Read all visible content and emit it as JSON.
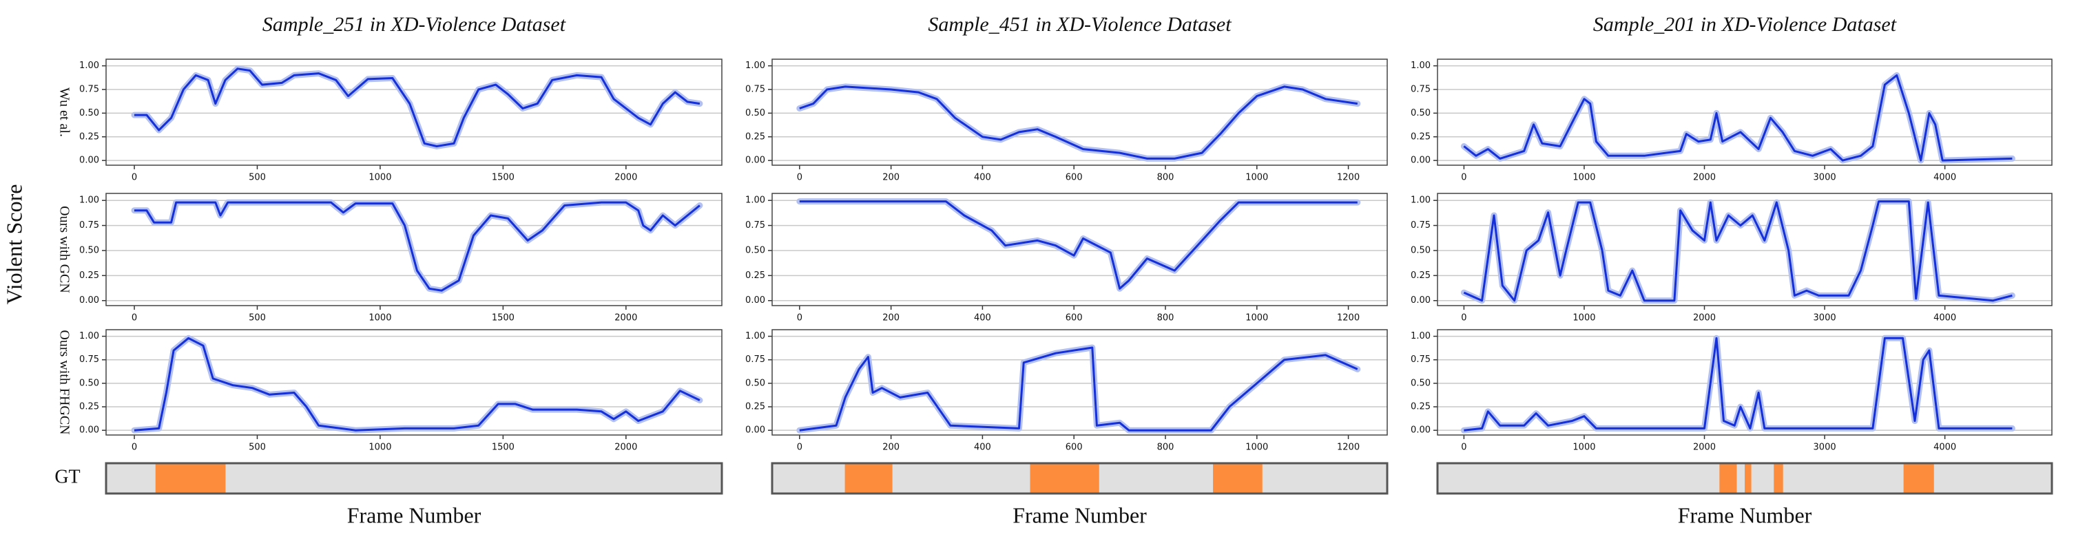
{
  "ylabel": "Violent Score",
  "chart_data": [
    {
      "type": "line",
      "title": "Sample_251 in XD-Violence Dataset",
      "ylabel": "Wu et al.",
      "color": "#1530d8",
      "grid": true,
      "x": [
        0,
        50,
        100,
        150,
        200,
        250,
        300,
        330,
        370,
        420,
        470,
        520,
        600,
        650,
        750,
        820,
        870,
        950,
        1050,
        1120,
        1180,
        1230,
        1300,
        1340,
        1400,
        1470,
        1520,
        1580,
        1640,
        1700,
        1800,
        1900,
        1950,
        2050,
        2100,
        2150,
        2200,
        2250,
        2300
      ],
      "values": [
        0.48,
        0.48,
        0.32,
        0.45,
        0.75,
        0.9,
        0.85,
        0.6,
        0.85,
        0.97,
        0.95,
        0.8,
        0.82,
        0.9,
        0.92,
        0.85,
        0.68,
        0.86,
        0.87,
        0.6,
        0.18,
        0.15,
        0.18,
        0.45,
        0.75,
        0.8,
        0.7,
        0.55,
        0.6,
        0.85,
        0.9,
        0.88,
        0.65,
        0.45,
        0.38,
        0.6,
        0.72,
        0.62,
        0.6
      ],
      "xlim": [
        -115,
        2390
      ],
      "ylim": [
        -0.05,
        1.07
      ],
      "xticks": [
        0,
        500,
        1000,
        1500,
        2000
      ],
      "yticks": [
        {
          "value": 0,
          "label": "0.00"
        },
        {
          "value": 0.25,
          "label": "0.25"
        },
        {
          "value": 0.5,
          "label": "0.50"
        },
        {
          "value": 0.75,
          "label": "0.75"
        },
        {
          "value": 1,
          "label": "1.00"
        }
      ]
    },
    {
      "type": "line",
      "title": "Sample_451 in XD-Violence Dataset",
      "color": "#1530d8",
      "grid": true,
      "x": [
        0,
        30,
        60,
        100,
        200,
        260,
        300,
        340,
        400,
        440,
        480,
        520,
        560,
        620,
        700,
        760,
        820,
        880,
        920,
        960,
        1000,
        1060,
        1100,
        1150,
        1220
      ],
      "values": [
        0.55,
        0.6,
        0.75,
        0.78,
        0.75,
        0.72,
        0.65,
        0.45,
        0.25,
        0.22,
        0.3,
        0.33,
        0.25,
        0.12,
        0.08,
        0.02,
        0.02,
        0.08,
        0.28,
        0.5,
        0.68,
        0.78,
        0.75,
        0.65,
        0.6
      ],
      "xlim": [
        -60,
        1285
      ],
      "ylim": [
        -0.05,
        1.07
      ],
      "xticks": [
        0,
        200,
        400,
        600,
        800,
        1000,
        1200
      ],
      "yticks": [
        {
          "value": 0,
          "label": "0.00"
        },
        {
          "value": 0.25,
          "label": "0.25"
        },
        {
          "value": 0.5,
          "label": "0.50"
        },
        {
          "value": 0.75,
          "label": "0.75"
        },
        {
          "value": 1,
          "label": "1.00"
        }
      ]
    },
    {
      "type": "line",
      "title": "Sample_201 in XD-Violence Dataset",
      "color": "#1530d8",
      "grid": true,
      "x": [
        0,
        100,
        200,
        300,
        500,
        580,
        650,
        800,
        900,
        1000,
        1050,
        1100,
        1200,
        1500,
        1800,
        1850,
        1950,
        2050,
        2100,
        2150,
        2300,
        2450,
        2550,
        2650,
        2750,
        2900,
        3050,
        3150,
        3300,
        3400,
        3500,
        3600,
        3700,
        3800,
        3870,
        3920,
        3980,
        4560
      ],
      "values": [
        0.15,
        0.05,
        0.12,
        0.02,
        0.1,
        0.38,
        0.18,
        0.15,
        0.4,
        0.65,
        0.6,
        0.2,
        0.05,
        0.05,
        0.1,
        0.28,
        0.2,
        0.22,
        0.5,
        0.2,
        0.3,
        0.12,
        0.45,
        0.3,
        0.1,
        0.05,
        0.12,
        0.0,
        0.05,
        0.15,
        0.8,
        0.9,
        0.5,
        0.0,
        0.5,
        0.38,
        0.0,
        0.02
      ],
      "xlim": [
        -220,
        4890
      ],
      "ylim": [
        -0.05,
        1.07
      ],
      "xticks": [
        0,
        1000,
        2000,
        3000,
        4000
      ],
      "yticks": [
        {
          "value": 0,
          "label": "0.00"
        },
        {
          "value": 0.25,
          "label": "0.25"
        },
        {
          "value": 0.5,
          "label": "0.50"
        },
        {
          "value": 0.75,
          "label": "0.75"
        },
        {
          "value": 1,
          "label": "1.00"
        }
      ]
    },
    {
      "type": "line",
      "ylabel": "Ours with GCN",
      "color": "#1530d8",
      "grid": true,
      "x": [
        0,
        50,
        80,
        150,
        170,
        330,
        350,
        380,
        800,
        850,
        900,
        1050,
        1100,
        1150,
        1200,
        1250,
        1320,
        1380,
        1450,
        1520,
        1600,
        1660,
        1750,
        1900,
        2000,
        2050,
        2070,
        2100,
        2150,
        2200,
        2300
      ],
      "values": [
        0.9,
        0.9,
        0.78,
        0.78,
        0.98,
        0.98,
        0.85,
        0.98,
        0.98,
        0.88,
        0.97,
        0.97,
        0.75,
        0.3,
        0.12,
        0.1,
        0.2,
        0.65,
        0.85,
        0.82,
        0.6,
        0.7,
        0.95,
        0.98,
        0.98,
        0.9,
        0.75,
        0.7,
        0.85,
        0.75,
        0.95
      ],
      "xlim": [
        -115,
        2390
      ],
      "ylim": [
        -0.05,
        1.07
      ],
      "xticks": [
        0,
        500,
        1000,
        1500,
        2000
      ],
      "yticks": [
        {
          "value": 0,
          "label": "0.00"
        },
        {
          "value": 0.25,
          "label": "0.25"
        },
        {
          "value": 0.5,
          "label": "0.50"
        },
        {
          "value": 0.75,
          "label": "0.75"
        },
        {
          "value": 1,
          "label": "1.00"
        }
      ]
    },
    {
      "type": "line",
      "color": "#1530d8",
      "grid": true,
      "x": [
        0,
        200,
        320,
        360,
        420,
        450,
        520,
        560,
        600,
        620,
        680,
        700,
        720,
        760,
        820,
        870,
        920,
        960,
        1220
      ],
      "values": [
        0.99,
        0.99,
        0.99,
        0.85,
        0.7,
        0.55,
        0.6,
        0.55,
        0.45,
        0.62,
        0.48,
        0.12,
        0.2,
        0.42,
        0.3,
        0.55,
        0.8,
        0.98,
        0.98
      ],
      "xlim": [
        -60,
        1285
      ],
      "ylim": [
        -0.05,
        1.07
      ],
      "xticks": [
        0,
        200,
        400,
        600,
        800,
        1000,
        1200
      ],
      "yticks": [
        {
          "value": 0,
          "label": "0.00"
        },
        {
          "value": 0.25,
          "label": "0.25"
        },
        {
          "value": 0.5,
          "label": "0.50"
        },
        {
          "value": 0.75,
          "label": "0.75"
        },
        {
          "value": 1,
          "label": "1.00"
        }
      ]
    },
    {
      "type": "line",
      "color": "#1530d8",
      "grid": true,
      "x": [
        0,
        150,
        250,
        320,
        420,
        520,
        620,
        700,
        800,
        850,
        950,
        1050,
        1150,
        1200,
        1300,
        1400,
        1500,
        1750,
        1800,
        1900,
        2000,
        2050,
        2100,
        2200,
        2300,
        2400,
        2500,
        2600,
        2700,
        2750,
        2850,
        2950,
        3200,
        3300,
        3400,
        3450,
        3700,
        3760,
        3860,
        3950,
        4400,
        4560
      ],
      "values": [
        0.08,
        0.0,
        0.85,
        0.15,
        0.0,
        0.5,
        0.6,
        0.88,
        0.25,
        0.5,
        0.98,
        0.98,
        0.5,
        0.1,
        0.05,
        0.3,
        0.0,
        0.0,
        0.9,
        0.7,
        0.6,
        0.98,
        0.6,
        0.85,
        0.75,
        0.85,
        0.6,
        0.98,
        0.5,
        0.05,
        0.1,
        0.05,
        0.05,
        0.3,
        0.75,
        0.99,
        0.99,
        0.02,
        0.98,
        0.05,
        0.0,
        0.05
      ],
      "xlim": [
        -220,
        4890
      ],
      "ylim": [
        -0.05,
        1.07
      ],
      "xticks": [
        0,
        1000,
        2000,
        3000,
        4000
      ],
      "yticks": [
        {
          "value": 0,
          "label": "0.00"
        },
        {
          "value": 0.25,
          "label": "0.25"
        },
        {
          "value": 0.5,
          "label": "0.50"
        },
        {
          "value": 0.75,
          "label": "0.75"
        },
        {
          "value": 1,
          "label": "1.00"
        }
      ]
    },
    {
      "type": "line",
      "ylabel": "Ours with FHGCN",
      "color": "#1530d8",
      "grid": true,
      "x": [
        0,
        100,
        130,
        160,
        220,
        280,
        320,
        400,
        480,
        550,
        650,
        700,
        750,
        900,
        1100,
        1300,
        1400,
        1480,
        1550,
        1620,
        1800,
        1900,
        1950,
        2000,
        2050,
        2150,
        2220,
        2300
      ],
      "values": [
        0.0,
        0.02,
        0.4,
        0.85,
        0.98,
        0.9,
        0.55,
        0.48,
        0.45,
        0.38,
        0.4,
        0.25,
        0.05,
        0.0,
        0.02,
        0.02,
        0.05,
        0.28,
        0.28,
        0.22,
        0.22,
        0.2,
        0.12,
        0.2,
        0.1,
        0.2,
        0.42,
        0.32
      ],
      "xlim": [
        -115,
        2390
      ],
      "ylim": [
        -0.05,
        1.07
      ],
      "xticks": [
        0,
        500,
        1000,
        1500,
        2000
      ],
      "yticks": [
        {
          "value": 0,
          "label": "0.00"
        },
        {
          "value": 0.25,
          "label": "0.25"
        },
        {
          "value": 0.5,
          "label": "0.50"
        },
        {
          "value": 0.75,
          "label": "0.75"
        },
        {
          "value": 1,
          "label": "1.00"
        }
      ]
    },
    {
      "type": "line",
      "color": "#1530d8",
      "grid": true,
      "x": [
        0,
        80,
        100,
        130,
        150,
        160,
        180,
        220,
        280,
        330,
        480,
        490,
        560,
        640,
        650,
        700,
        720,
        900,
        940,
        1000,
        1060,
        1150,
        1220
      ],
      "values": [
        0.0,
        0.05,
        0.35,
        0.65,
        0.78,
        0.4,
        0.45,
        0.35,
        0.4,
        0.05,
        0.02,
        0.72,
        0.82,
        0.88,
        0.05,
        0.08,
        0.0,
        0.0,
        0.25,
        0.5,
        0.75,
        0.8,
        0.65
      ],
      "xlim": [
        -60,
        1285
      ],
      "ylim": [
        -0.05,
        1.07
      ],
      "xticks": [
        0,
        200,
        400,
        600,
        800,
        1000,
        1200
      ],
      "yticks": [
        {
          "value": 0,
          "label": "0.00"
        },
        {
          "value": 0.25,
          "label": "0.25"
        },
        {
          "value": 0.5,
          "label": "0.50"
        },
        {
          "value": 0.75,
          "label": "0.75"
        },
        {
          "value": 1,
          "label": "1.00"
        }
      ]
    },
    {
      "type": "line",
      "color": "#1530d8",
      "grid": true,
      "x": [
        0,
        150,
        200,
        300,
        500,
        600,
        700,
        900,
        1000,
        1100,
        2000,
        2100,
        2160,
        2250,
        2300,
        2380,
        2450,
        2500,
        3400,
        3500,
        3650,
        3750,
        3820,
        3870,
        3950,
        4560
      ],
      "values": [
        0.0,
        0.02,
        0.2,
        0.05,
        0.05,
        0.18,
        0.05,
        0.1,
        0.15,
        0.02,
        0.02,
        0.98,
        0.1,
        0.05,
        0.25,
        0.02,
        0.4,
        0.02,
        0.02,
        0.98,
        0.98,
        0.1,
        0.75,
        0.85,
        0.02,
        0.02
      ],
      "xlim": [
        -220,
        4890
      ],
      "ylim": [
        -0.05,
        1.07
      ],
      "xticks": [
        0,
        1000,
        2000,
        3000,
        4000
      ],
      "yticks": [
        {
          "value": 0,
          "label": "0.00"
        },
        {
          "value": 0.25,
          "label": "0.25"
        },
        {
          "value": 0.5,
          "label": "0.50"
        },
        {
          "value": 0.75,
          "label": "0.75"
        },
        {
          "value": 1,
          "label": "1.00"
        }
      ]
    },
    {
      "type": "span",
      "ylabel": "GT",
      "xlabel": "Frame Number",
      "color": "#fd8d3c",
      "background": "#e0e0e0",
      "spans": [
        [
          86,
          371
        ]
      ],
      "xlim": [
        -115,
        2390
      ]
    },
    {
      "type": "span",
      "xlabel": "Frame Number",
      "color": "#fd8d3c",
      "background": "#e0e0e0",
      "spans": [
        [
          99,
          203
        ],
        [
          504,
          655
        ],
        [
          904,
          1012
        ]
      ],
      "xlim": [
        -60,
        1285
      ]
    },
    {
      "type": "span",
      "xlabel": "Frame Number",
      "color": "#fd8d3c",
      "background": "#e0e0e0",
      "spans": [
        [
          2125,
          2269
        ],
        [
          2335,
          2390
        ],
        [
          2577,
          2654
        ],
        [
          3656,
          3909
        ]
      ],
      "xlim": [
        -220,
        4890
      ]
    }
  ]
}
